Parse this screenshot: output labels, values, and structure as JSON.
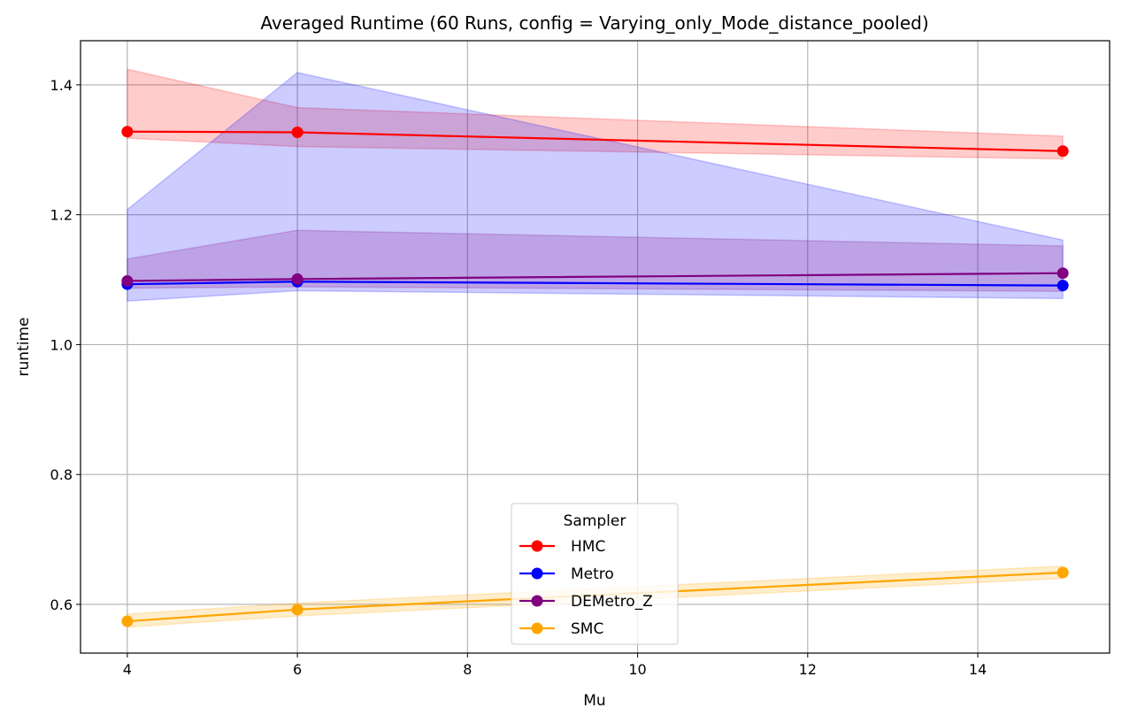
{
  "chart_data": {
    "type": "line",
    "title": "Averaged Runtime (60 Runs, config = Varying_only_Mode_distance_pooled)",
    "xlabel": "Mu",
    "ylabel": "runtime",
    "x": [
      4,
      6,
      15
    ],
    "xlim": [
      3.45,
      15.55
    ],
    "ylim": [
      0.525,
      1.468
    ],
    "xticks": [
      4,
      6,
      8,
      10,
      12,
      14
    ],
    "xtick_labels": [
      "4",
      "6",
      "8",
      "10",
      "12",
      "14"
    ],
    "yticks": [
      0.6,
      0.8,
      1.0,
      1.2,
      1.4
    ],
    "ytick_labels": [
      "0.6",
      "0.8",
      "1.0",
      "1.2",
      "1.4"
    ],
    "grid": true,
    "legend": {
      "title": "Sampler",
      "placement": "lower-center"
    },
    "series": [
      {
        "name": "HMC",
        "color": "#ff0000",
        "values": [
          1.328,
          1.327,
          1.298
        ],
        "lower": [
          1.318,
          1.305,
          1.286
        ],
        "upper": [
          1.424,
          1.365,
          1.321
        ]
      },
      {
        "name": "Metro",
        "color": "#0000ff",
        "values": [
          1.093,
          1.097,
          1.091
        ],
        "lower": [
          1.067,
          1.083,
          1.071
        ],
        "upper": [
          1.208,
          1.419,
          1.161
        ]
      },
      {
        "name": "DEMetro_Z",
        "color": "#800080",
        "values": [
          1.098,
          1.101,
          1.11
        ],
        "lower": [
          1.087,
          1.089,
          1.082
        ],
        "upper": [
          1.132,
          1.176,
          1.152
        ]
      },
      {
        "name": "SMC",
        "color": "#ffa500",
        "values": [
          0.574,
          0.592,
          0.649
        ],
        "lower": [
          0.565,
          0.582,
          0.64
        ],
        "upper": [
          0.585,
          0.602,
          0.659
        ]
      }
    ]
  }
}
